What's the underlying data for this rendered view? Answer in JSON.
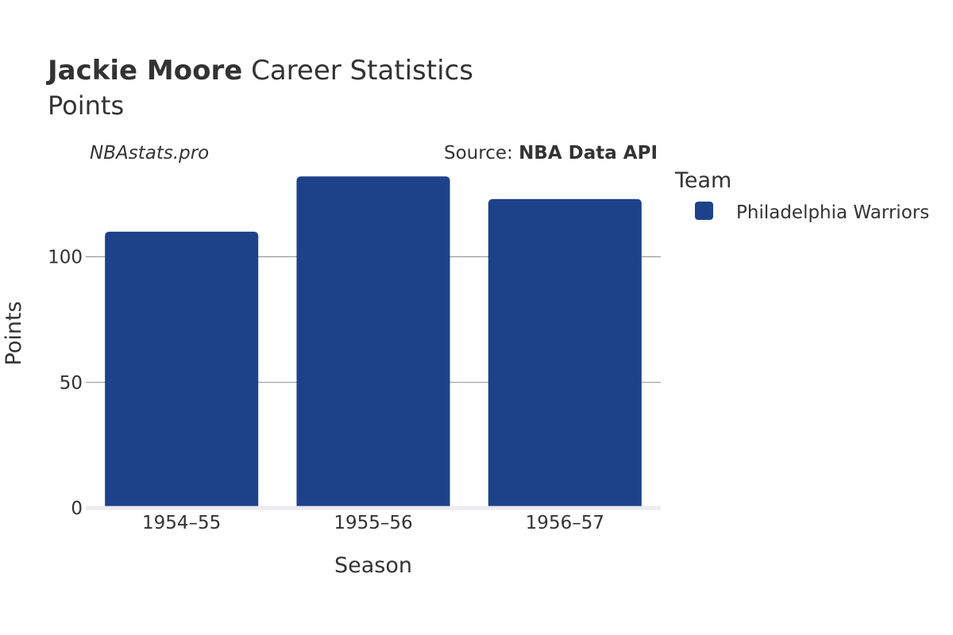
{
  "header": {
    "player_name": "Jackie Moore",
    "title_rest": " Career Statistics",
    "subtitle": "Points"
  },
  "credit": "NBAstats.pro",
  "source": {
    "prefix": "Source: ",
    "name": "NBA Data API"
  },
  "legend": {
    "title": "Team",
    "items": [
      {
        "label": "Philadelphia Warriors",
        "color": "#1d428a"
      }
    ]
  },
  "chart_data": {
    "type": "bar",
    "categories": [
      "1954–55",
      "1955–56",
      "1956–57"
    ],
    "series": [
      {
        "name": "Philadelphia Warriors",
        "values": [
          110,
          132,
          123
        ],
        "color": "#1d428a"
      }
    ],
    "xlabel": "Season",
    "ylabel": "Points",
    "ylim": [
      0,
      132
    ],
    "yticks": [
      0,
      50,
      100
    ],
    "grid": true,
    "legend_position": "right"
  }
}
